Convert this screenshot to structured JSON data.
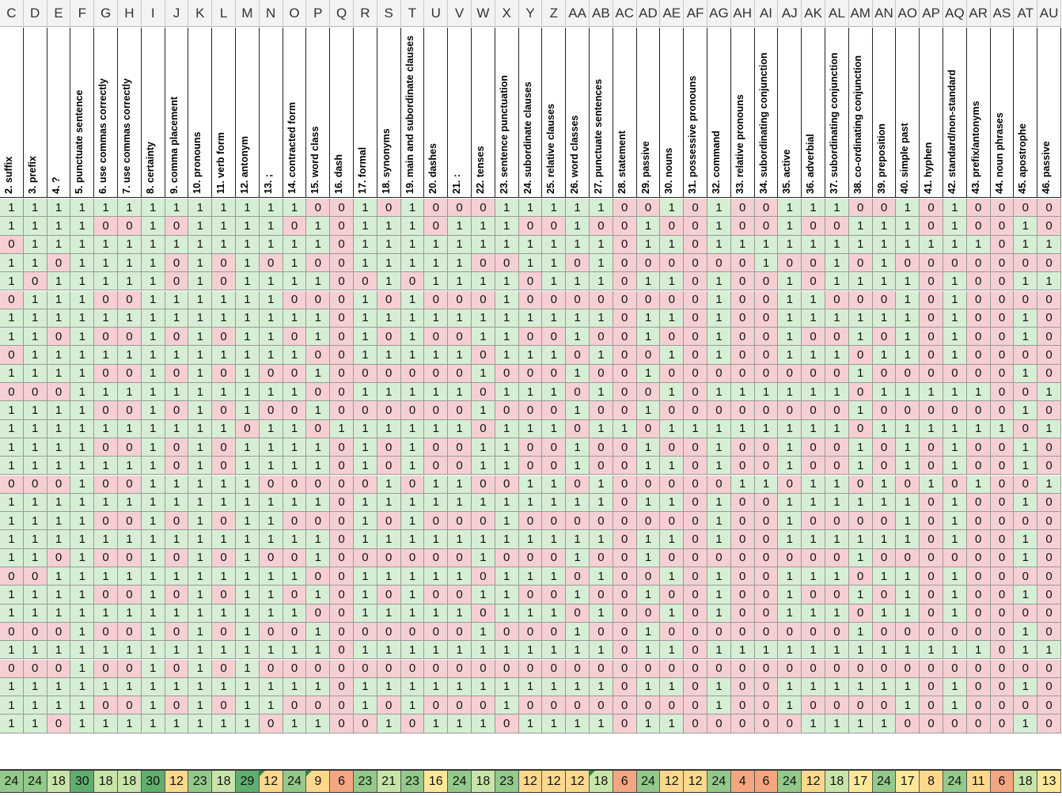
{
  "columns": [
    {
      "letter": "C",
      "question": "2. suffix",
      "values": "11011011010111101111011010111",
      "total": "24"
    },
    {
      "letter": "D",
      "question": "3. prefix",
      "values": "11110111110111101111011010111",
      "total": "24"
    },
    {
      "letter": "E",
      "question": "4. ?",
      "values": "11101110110111101110111010110",
      "total": "18"
    },
    {
      "letter": "F",
      "question": "5. punctuate sentence",
      "values": "11111111111111111111111111111",
      "total": "30"
    },
    {
      "letter": "G",
      "question": "6. use commas correctly",
      "values": "10111010101010101010101010101",
      "total": "18"
    },
    {
      "letter": "H",
      "question": "7. use commas correctly",
      "values": "10111010101010101010101010101",
      "total": "18"
    },
    {
      "letter": "I",
      "question": "8. certainty",
      "values": "11111111111111111111111111111",
      "total": "30"
    },
    {
      "letter": "J",
      "question": "9. comma placement",
      "values": "10100110101010011010101010101",
      "total": "12"
    },
    {
      "letter": "K",
      "question": "10. pronouns",
      "values": "11111111111111111111111111111",
      "total": "23"
    },
    {
      "letter": "L",
      "question": "11. verb form",
      "values": "11100110101010011010101010101",
      "total": "18"
    },
    {
      "letter": "M",
      "question": "12. antonym",
      "values": "11111111111101111111111111111",
      "total": "29"
    },
    {
      "letter": "N",
      "question": "13. ;",
      "values": "11101111101011101110111010110",
      "total": "12"
    },
    {
      "letter": "O",
      "question": "14. contracted form",
      "values": "10111010101011101010101010101",
      "total": "24"
    },
    {
      "letter": "P",
      "question": "15. word class",
      "values": "01101011010101101011010110101",
      "total": "9"
    },
    {
      "letter": "Q",
      "question": "16. dash",
      "values": "00000000000010000000000000000",
      "total": "6"
    },
    {
      "letter": "R",
      "question": "17. formal",
      "values": "11110111101011101110111010110",
      "total": "23"
    },
    {
      "letter": "S",
      "question": "18. synonyms",
      "values": "01111010101010011010101010101",
      "total": "21"
    },
    {
      "letter": "T",
      "question": "19. main and subordinate clauses",
      "values": "11110111101011101110111010110",
      "total": "23"
    },
    {
      "letter": "U",
      "question": "20. dashes",
      "values": "00111010101010011010101010101",
      "total": "16"
    },
    {
      "letter": "V",
      "question": "21. :",
      "values": "01111010101010011010101010101",
      "total": "24"
    },
    {
      "letter": "W",
      "question": "22. tenses",
      "values": "01101011010101101011010110101",
      "total": "18"
    },
    {
      "letter": "X",
      "question": "23. sentence punctuation",
      "values": "11101111101011101110111010110",
      "total": "23"
    },
    {
      "letter": "Y",
      "question": "24. subordinate clauses",
      "values": "10110010101010011010101010101",
      "total": "12"
    },
    {
      "letter": "Z",
      "question": "25. relative clauses",
      "values": "10111010101010011010101010101",
      "total": "12"
    },
    {
      "letter": "AA",
      "question": "26. word classes",
      "values": "11101011010101101011010110101",
      "total": "12"
    },
    {
      "letter": "AB",
      "question": "27. punctuate sentences",
      "values": "10111010101010011010101010101",
      "total": "18"
    },
    {
      "letter": "AC",
      "question": "28. statement",
      "values": "00000000000010000000000000000",
      "total": "6"
    },
    {
      "letter": "AD",
      "question": "29. passive",
      "values": "01101011010101101011010110101",
      "total": "24"
    },
    {
      "letter": "AE",
      "question": "30. nouns",
      "values": "10101010101010101010101010101",
      "total": "12"
    },
    {
      "letter": "AF",
      "question": "31. possessive pronouns",
      "values": "00000000000010000000000000000",
      "total": "12"
    },
    {
      "letter": "AG",
      "question": "32. command",
      "values": "11101111101011101110111010110",
      "total": "24"
    },
    {
      "letter": "AH",
      "question": "33. relative pronouns",
      "values": "00100000001010010000000010000",
      "total": "4"
    },
    {
      "letter": "AI",
      "question": "34. subordinating conjunction",
      "values": "00110000001010010000000010000",
      "total": "6"
    },
    {
      "letter": "AJ",
      "question": "35. active",
      "values": "11101111101011101110111010110",
      "total": "24"
    },
    {
      "letter": "AK",
      "question": "36. adverbial",
      "values": "10100110101010011010101010101",
      "total": "12"
    },
    {
      "letter": "AL",
      "question": "37. subordinating conjunction",
      "values": "10111010101010011010101010101",
      "total": "18"
    },
    {
      "letter": "AM",
      "question": "38. co-ordinating conjunction",
      "values": "01101011010101101011010110101",
      "total": "17"
    },
    {
      "letter": "AN",
      "question": "39. preposition",
      "values": "01111010101010011010101010101",
      "total": "24"
    },
    {
      "letter": "AO",
      "question": "40. simple past",
      "values": "11101111101011101110111010110",
      "total": "17"
    },
    {
      "letter": "AP",
      "question": "41. hyphen",
      "values": "00100000001010010000000010000",
      "total": "8"
    },
    {
      "letter": "AQ",
      "question": "42. standard/non-standard",
      "values": "11101111101011101110111010110",
      "total": "24"
    },
    {
      "letter": "AR",
      "question": "43. prefix/antonyms",
      "values": "00100000001010010000000010000",
      "total": "11"
    },
    {
      "letter": "AS",
      "question": "44. noun phrases",
      "values": "00000000000010000000000000000",
      "total": "6"
    },
    {
      "letter": "AT",
      "question": "45. apostrophe",
      "values": "01101011010101101011010110101",
      "total": "18"
    },
    {
      "letter": "AU",
      "question": "46. passive",
      "values": "00101000001010010000000010000",
      "total": "13"
    }
  ],
  "partial_left_column": {
    "letter": "C",
    "total": "24"
  },
  "colors": {
    "correct_fill": "#d6efd4",
    "incorrect_fill": "#f6cfd3",
    "total_scale": [
      "#e8776b",
      "#f4a682",
      "#fbd88c",
      "#fde89a",
      "#c9e4a9",
      "#93c98a",
      "#5fae6e"
    ]
  }
}
